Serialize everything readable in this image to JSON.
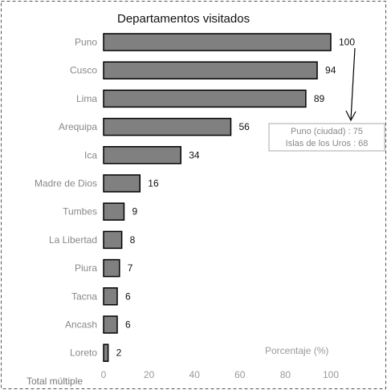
{
  "chart_data": {
    "type": "bar",
    "orientation": "horizontal",
    "title": "Departamentos visitados",
    "categories": [
      "Puno",
      "Cusco",
      "Lima",
      "Arequipa",
      "Ica",
      "Madre de Dios",
      "Tumbes",
      "La Libertad",
      "Piura",
      "Tacna",
      "Ancash",
      "Loreto"
    ],
    "values": [
      100,
      94,
      89,
      56,
      34,
      16,
      9,
      8,
      7,
      6,
      6,
      2
    ],
    "xlabel": "Porcentaje (%)",
    "xlim": [
      0,
      100
    ],
    "xticks": [
      "0",
      "20",
      "40",
      "60",
      "80",
      "100"
    ],
    "grid": false,
    "footnote": "Total múltiple",
    "annotation": {
      "points_to": "Puno",
      "lines": [
        "Puno (ciudad) : 75",
        "Islas de los Uros : 68"
      ]
    },
    "colors": {
      "bar_fill": "#808080",
      "bar_stroke": "#000000"
    }
  }
}
